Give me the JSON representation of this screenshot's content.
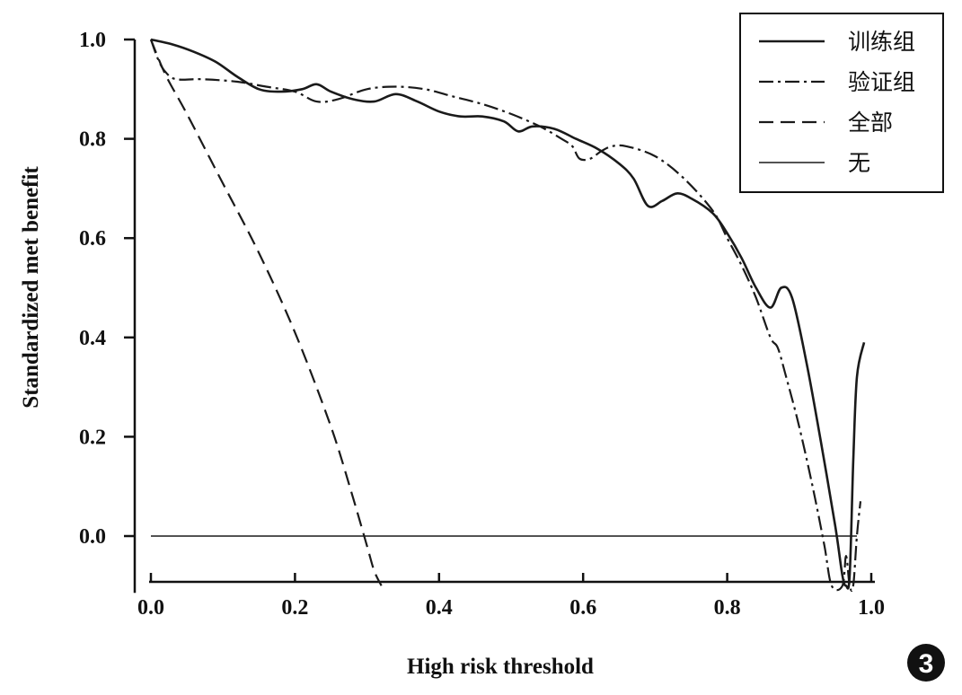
{
  "chart_data": {
    "type": "line",
    "title": "",
    "xlabel": "High risk threshold",
    "ylabel": "Standardized met benefit",
    "xlim": [
      0.0,
      1.0
    ],
    "ylim": [
      -0.1,
      1.0
    ],
    "x_ticks": [
      "0.0",
      "0.2",
      "0.4",
      "0.6",
      "0.8",
      "1.0"
    ],
    "y_ticks": [
      "0.0",
      "0.2",
      "0.4",
      "0.6",
      "0.8",
      "1.0"
    ],
    "legend_position": "top-right",
    "panel_label": "3",
    "series": [
      {
        "name": "训练组",
        "style": "solid-thick",
        "x": [
          0.0,
          0.03,
          0.06,
          0.09,
          0.12,
          0.15,
          0.18,
          0.21,
          0.23,
          0.25,
          0.28,
          0.31,
          0.34,
          0.37,
          0.4,
          0.43,
          0.46,
          0.49,
          0.51,
          0.53,
          0.56,
          0.59,
          0.62,
          0.65,
          0.67,
          0.69,
          0.71,
          0.73,
          0.75,
          0.78,
          0.8,
          0.82,
          0.84,
          0.86,
          0.875,
          0.89,
          0.91,
          0.93,
          0.95,
          0.96,
          0.965,
          0.97,
          0.975,
          0.98,
          0.99
        ],
        "y": [
          1.0,
          0.99,
          0.975,
          0.955,
          0.925,
          0.9,
          0.895,
          0.9,
          0.91,
          0.895,
          0.88,
          0.875,
          0.89,
          0.875,
          0.855,
          0.845,
          0.845,
          0.835,
          0.815,
          0.825,
          0.82,
          0.8,
          0.78,
          0.75,
          0.72,
          0.665,
          0.675,
          0.69,
          0.68,
          0.65,
          0.61,
          0.56,
          0.5,
          0.46,
          0.5,
          0.48,
          0.35,
          0.19,
          0.02,
          -0.08,
          -0.1,
          -0.08,
          0.15,
          0.32,
          0.39
        ]
      },
      {
        "name": "验证组",
        "style": "dash-dot",
        "x": [
          0.0,
          0.01,
          0.02,
          0.035,
          0.07,
          0.12,
          0.16,
          0.2,
          0.23,
          0.26,
          0.3,
          0.34,
          0.38,
          0.42,
          0.46,
          0.5,
          0.54,
          0.57,
          0.585,
          0.595,
          0.61,
          0.625,
          0.64,
          0.66,
          0.7,
          0.74,
          0.78,
          0.8,
          0.82,
          0.84,
          0.86,
          0.87,
          0.88,
          0.9,
          0.92,
          0.935,
          0.945,
          0.96,
          0.965,
          0.97,
          0.975,
          0.98,
          0.985
        ],
        "y": [
          1.0,
          0.96,
          0.935,
          0.92,
          0.92,
          0.915,
          0.905,
          0.895,
          0.875,
          0.88,
          0.9,
          0.905,
          0.9,
          0.885,
          0.87,
          0.85,
          0.825,
          0.8,
          0.785,
          0.76,
          0.76,
          0.775,
          0.785,
          0.785,
          0.765,
          0.72,
          0.655,
          0.6,
          0.545,
          0.48,
          0.4,
          0.38,
          0.33,
          0.22,
          0.09,
          -0.02,
          -0.1,
          -0.1,
          -0.04,
          -0.1,
          -0.1,
          0.0,
          0.07
        ]
      },
      {
        "name": "全部",
        "style": "dashed",
        "x": [
          0.0,
          0.02,
          0.05,
          0.1,
          0.15,
          0.2,
          0.25,
          0.28,
          0.3,
          0.31,
          0.32
        ],
        "y": [
          1.0,
          0.93,
          0.85,
          0.71,
          0.57,
          0.41,
          0.22,
          0.08,
          -0.02,
          -0.07,
          -0.1
        ]
      },
      {
        "name": "无",
        "style": "thin-solid",
        "x": [
          0.0,
          0.98
        ],
        "y": [
          0.0,
          0.0
        ]
      }
    ]
  }
}
